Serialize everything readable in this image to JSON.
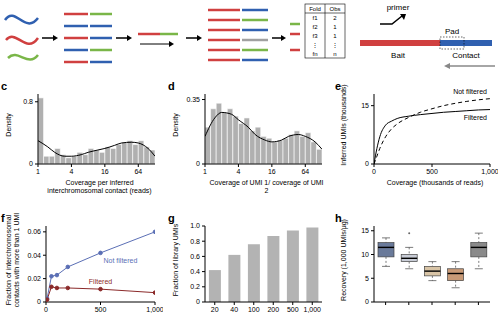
{
  "diagram": {
    "table": {
      "header": [
        "Fold",
        "Obs"
      ],
      "rows": [
        [
          "f1",
          "2"
        ],
        [
          "f2",
          "1"
        ],
        [
          "f3",
          "1"
        ],
        [
          "⋮",
          "⋮"
        ],
        [
          "fn",
          "n"
        ]
      ]
    },
    "labels": {
      "primer": "primer",
      "pad": "Pad",
      "bait": "Bait",
      "contact": "Contact"
    }
  },
  "chart_data": [
    {
      "panel": "c",
      "type": "histogram",
      "x_label": "Coverage per inferred interchromosomal contact (reads)",
      "y_label": "Density",
      "bins": [
        1,
        1.26,
        1.59,
        2,
        2.52,
        3.17,
        4,
        5.04,
        6.35,
        8,
        10.08,
        12.7,
        16,
        20.16,
        25.4,
        32,
        40.32,
        50.8,
        64,
        80.63,
        101.6,
        128
      ],
      "values": [
        0.85,
        0.1,
        0.1,
        0.2,
        0.12,
        0.08,
        0.1,
        0.15,
        0.12,
        0.2,
        0.18,
        0.15,
        0.22,
        0.2,
        0.25,
        0.28,
        0.3,
        0.25,
        0.3,
        0.22,
        0.18
      ],
      "color": "#b0b0b0",
      "curve": {
        "x": [
          1,
          1.5,
          2,
          3,
          4,
          6,
          8,
          12,
          16,
          24,
          32,
          48,
          64,
          96,
          128
        ],
        "y": [
          0.3,
          0.22,
          0.15,
          0.1,
          0.1,
          0.12,
          0.15,
          0.18,
          0.2,
          0.24,
          0.27,
          0.28,
          0.27,
          0.2,
          0.1
        ],
        "color": "#000000"
      },
      "log": "x",
      "xlim": [
        1,
        128
      ],
      "xticks": [
        1,
        4,
        16,
        64
      ],
      "ylim": [
        0,
        0.9
      ],
      "yticks": [
        0,
        0.8
      ]
    },
    {
      "panel": "d",
      "type": "histogram",
      "x_label": "Coverage of UMI 1/ coverage of UMI 2",
      "y_label": "Density",
      "bins": [
        1,
        1.26,
        1.59,
        2,
        2.52,
        3.17,
        4,
        5.04,
        6.35,
        8,
        10.08,
        12.7,
        16,
        20.16,
        25.4,
        32,
        40.32,
        50.8,
        64,
        80.63,
        101.6,
        128
      ],
      "values": [
        0.2,
        0.3,
        0.33,
        0.28,
        0.3,
        0.26,
        0.22,
        0.25,
        0.18,
        0.2,
        0.15,
        0.14,
        0.12,
        0.13,
        0.14,
        0.16,
        0.18,
        0.15,
        0.17,
        0.12,
        0.08
      ],
      "color": "#b0b0b0",
      "curve": {
        "x": [
          1,
          1.5,
          2,
          3,
          4,
          6,
          8,
          12,
          16,
          24,
          32,
          48,
          64,
          96,
          128
        ],
        "y": [
          0.15,
          0.25,
          0.28,
          0.27,
          0.24,
          0.2,
          0.16,
          0.13,
          0.12,
          0.13,
          0.15,
          0.16,
          0.15,
          0.12,
          0.08
        ],
        "color": "#000000"
      },
      "log": "x",
      "xlim": [
        1,
        128
      ],
      "xticks": [
        1,
        4,
        16,
        64
      ],
      "ylim": [
        0,
        0.38
      ],
      "yticks": [
        0,
        0.35
      ]
    },
    {
      "panel": "e",
      "type": "line",
      "x_label": "Coverage (thousands of reads)",
      "y_label": "Inferred UMIs (thousands)",
      "x": [
        0,
        25,
        50,
        100,
        150,
        200,
        300,
        400,
        500,
        600,
        700,
        800,
        900,
        1000
      ],
      "series": [
        {
          "name": "Not filtered",
          "color": "#000000",
          "line_style": "dashed",
          "values": [
            0,
            2,
            4,
            7,
            9,
            10.3,
            12,
            13.3,
            14.2,
            15,
            15.6,
            16.1,
            16.5,
            16.8
          ]
        },
        {
          "name": "Filtered",
          "color": "#000000",
          "line_style": "solid",
          "values": [
            0,
            4,
            7,
            10,
            11,
            11.7,
            12.3,
            12.7,
            13,
            13.3,
            13.5,
            13.7,
            13.9,
            14
          ]
        }
      ],
      "xlim": [
        0,
        1000
      ],
      "xticks": [
        0,
        500,
        {
          "value": 1000,
          "label": "1,000"
        }
      ],
      "ylim": [
        0,
        18
      ],
      "yticks": [
        0,
        15
      ]
    },
    {
      "panel": "f",
      "type": "line",
      "y_label": "Fraction of interchromosomal contacts with more than 1 UMI",
      "x": [
        10,
        50,
        100,
        200,
        500,
        1000
      ],
      "series": [
        {
          "name": "Not filtered",
          "color": "#5b6fb5",
          "marker": "circle",
          "values": [
            0.003,
            0.022,
            0.023,
            0.03,
            0.042,
            0.06
          ]
        },
        {
          "name": "Filtered",
          "color": "#8b2a2a",
          "marker": "circle",
          "values": [
            0.002,
            0.013,
            0.012,
            0.012,
            0.011,
            0.008
          ]
        }
      ],
      "xlim": [
        0,
        1000
      ],
      "xticks": [
        0,
        500,
        {
          "value": 1000,
          "label": "1,000"
        }
      ],
      "ylim": [
        0,
        0.065
      ],
      "yticks": [
        0,
        0.02,
        0.04,
        0.06
      ]
    },
    {
      "panel": "g",
      "type": "bar",
      "y_label": "Fraction of library UMIs",
      "categories": [
        "20",
        "40",
        "100",
        "200",
        "500",
        "1,000"
      ],
      "values": [
        0.42,
        0.62,
        0.76,
        0.87,
        0.94,
        0.98
      ],
      "color": "#b3b3b3",
      "ylim": [
        0,
        1
      ],
      "yticks": [
        0,
        0.2,
        0.4,
        0.6,
        0.8,
        {
          "value": 1,
          "label": "1.0"
        }
      ]
    },
    {
      "panel": "h",
      "type": "box",
      "y_label": "Recovery (1,000 UMIs/μg)",
      "categories": [
        null,
        null,
        null,
        null,
        null
      ],
      "boxes": [
        {
          "min": 7.5,
          "q1": 9.5,
          "median": 11.5,
          "q3": 12.5,
          "max": 13.5,
          "outliers": []
        },
        {
          "min": 7,
          "q1": 8.5,
          "median": 9.2,
          "q3": 10,
          "max": 11.5,
          "outliers": [
            14.5
          ]
        },
        {
          "min": 4.5,
          "q1": 5.5,
          "median": 6.5,
          "q3": 7.5,
          "max": 8.5,
          "outliers": []
        },
        {
          "min": 3,
          "q1": 4.5,
          "median": 6,
          "q3": 7,
          "max": 8.5,
          "outliers": []
        },
        {
          "min": 7,
          "q1": 9.5,
          "median": 11.5,
          "q3": 12.5,
          "max": 14.5,
          "outliers": []
        }
      ],
      "colors": [
        "#6a7a9a",
        "#c8ccd6",
        "#d8c4a6",
        "#c89a77",
        "#8a8a8a"
      ],
      "ylim": [
        0,
        16
      ],
      "yticks": [
        0,
        5,
        10,
        15
      ]
    }
  ]
}
